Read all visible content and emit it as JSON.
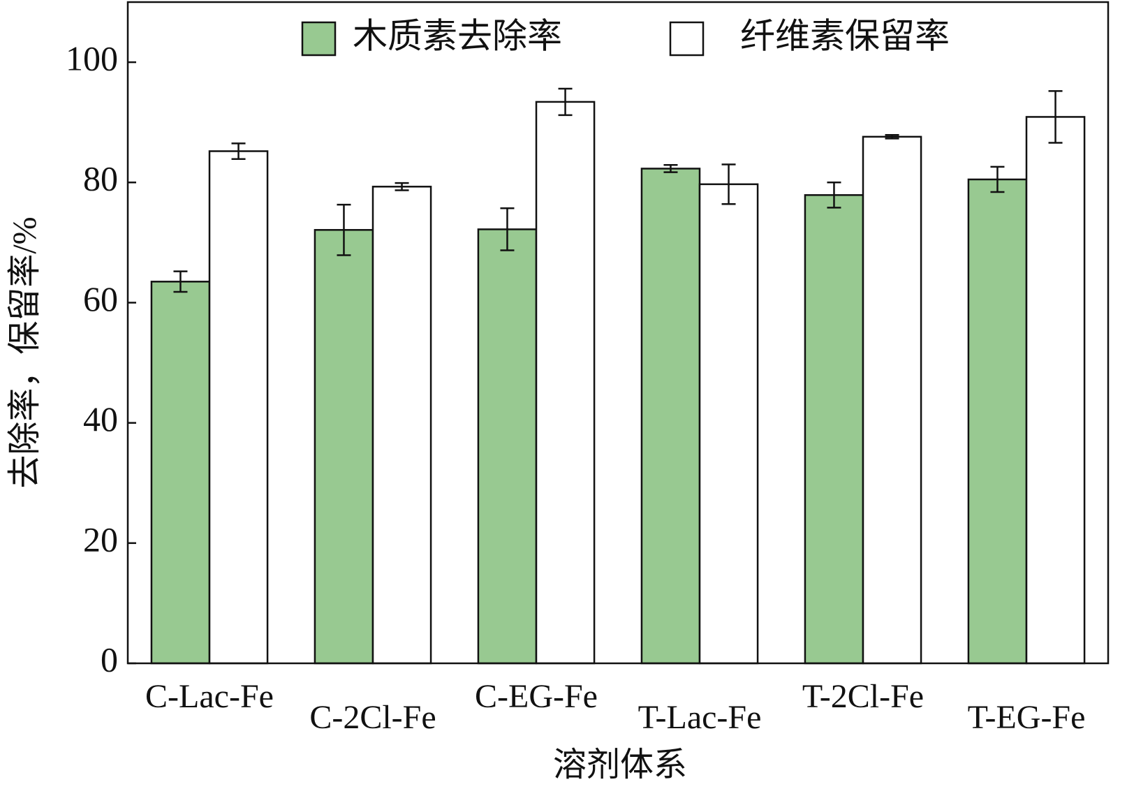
{
  "chart_data": {
    "type": "bar",
    "x_label": "溶剂体系",
    "y_label": "去除率，保留率/%",
    "categories": [
      "C-Lac-Fe",
      "C-2Cl-Fe",
      "C-EG-Fe",
      "T-Lac-Fe",
      "T-2Cl-Fe",
      "T-EG-Fe"
    ],
    "series": [
      {
        "name": "木质素去除率",
        "color": "#98c991",
        "values": [
          63.5,
          72.1,
          72.2,
          82.3,
          77.9,
          80.5
        ],
        "errors": [
          1.7,
          4.2,
          3.5,
          0.6,
          2.1,
          2.1
        ]
      },
      {
        "name": "纤维素保留率",
        "color": "#ffffff",
        "values": [
          85.2,
          79.3,
          93.4,
          79.7,
          87.6,
          90.9
        ],
        "errors": [
          1.3,
          0.6,
          2.2,
          3.3,
          0.3,
          4.3
        ]
      }
    ],
    "ylim": [
      0,
      110
    ],
    "yticks": [
      0,
      20,
      40,
      60,
      80,
      100
    ],
    "grid": false,
    "legend": "top"
  }
}
